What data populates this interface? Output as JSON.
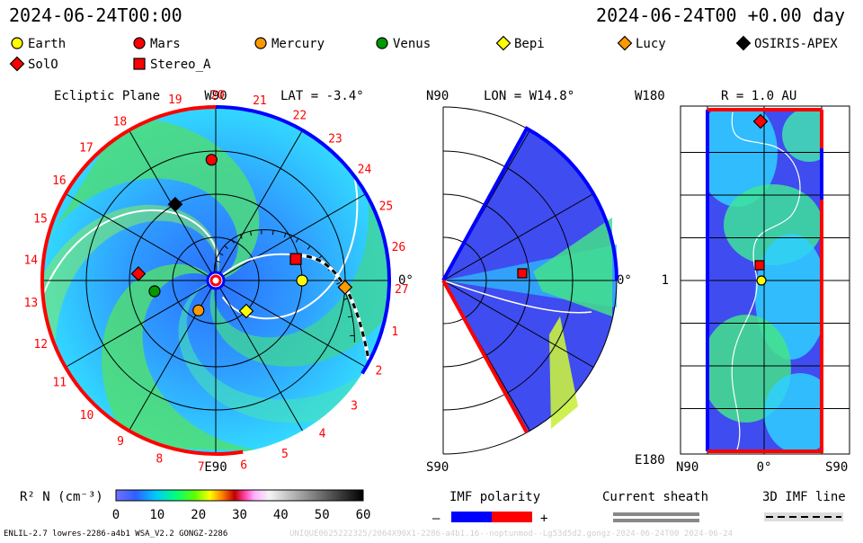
{
  "header": {
    "datetime_left": "2024-06-24T00:00",
    "datetime_right": "2024-06-24T00 +0.00 day"
  },
  "legend": {
    "bodies": [
      {
        "name": "Earth",
        "shape": "circle",
        "color": "#ffff00"
      },
      {
        "name": "Mars",
        "shape": "circle",
        "color": "#ff0000"
      },
      {
        "name": "Mercury",
        "shape": "circle",
        "color": "#ff9900"
      },
      {
        "name": "Venus",
        "shape": "circle",
        "color": "#009900"
      },
      {
        "name": "Bepi",
        "shape": "diamond",
        "color": "#ffff00"
      },
      {
        "name": "Lucy",
        "shape": "diamond",
        "color": "#ff9900"
      },
      {
        "name": "OSIRIS-APEX",
        "shape": "diamond",
        "color": "#000000"
      },
      {
        "name": "SolO",
        "shape": "diamond",
        "color": "#ff0000"
      },
      {
        "name": "Stereo_A",
        "shape": "square",
        "color": "#ff0000"
      }
    ]
  },
  "panels": {
    "ecliptic": {
      "title": "Ecliptic Plane",
      "top_label": "W90",
      "bottom_label": "E90",
      "right_label": "0°",
      "lat_label": "LAT = -3.4°",
      "rotation_numbers": [
        "19",
        "20",
        "21",
        "22",
        "23",
        "24",
        "25",
        "26",
        "27",
        "1",
        "2",
        "3",
        "4",
        "5",
        "6",
        "7",
        "8",
        "9",
        "10",
        "11",
        "12",
        "13",
        "14",
        "15",
        "16",
        "17",
        "18"
      ]
    },
    "meridional": {
      "top_left_label": "N90",
      "lon_label": "LON = W14.8°",
      "bottom_left_label": "S90",
      "right_label": "0°"
    },
    "radial": {
      "top_left_label": "W180",
      "r_label": "R = 1.0 AU",
      "mid_left_label": "1",
      "bottom_left_label": "E180",
      "x_labels": [
        "N90",
        "0°",
        "S90"
      ]
    }
  },
  "colorbar": {
    "label": "R² N (cm⁻³)",
    "ticks": [
      "0",
      "10",
      "20",
      "30",
      "40",
      "50",
      "60"
    ]
  },
  "imf_legend": {
    "polarity_title": "IMF polarity",
    "minus": "–",
    "plus": "+",
    "sheath_title": "Current sheath",
    "line_title": "3D IMF line",
    "colors": {
      "negative": "#0000ff",
      "positive": "#ff0000"
    }
  },
  "footer": {
    "left_text": "ENLIL-2.7 lowres-2286-a4b1 WSA_V2.2 GONGZ-2286",
    "right_text": "UNIQUE0625222325/2064X90X1-2286-a4b1.16--noptunmod--Lg53d5d2.gongz-2024-06-24T00    2024-06-24"
  },
  "chart_data": {
    "type": "heatmap",
    "title": "Ecliptic Plane",
    "colorbar_range": [
      0,
      60
    ],
    "colorbar_ticks": [
      0,
      10,
      20,
      30,
      40,
      50,
      60
    ],
    "bodies_ecliptic": [
      {
        "name": "Earth",
        "r_au": 1.0,
        "lon_deg": 0
      },
      {
        "name": "Mars",
        "r_au": 1.4,
        "lon_deg": 92
      },
      {
        "name": "Mercury",
        "r_au": 0.4,
        "lon_deg": -120
      },
      {
        "name": "Venus",
        "r_au": 0.72,
        "lon_deg": -170
      },
      {
        "name": "Bepi",
        "r_au": 0.5,
        "lon_deg": -45
      },
      {
        "name": "Lucy",
        "r_au": 1.5,
        "lon_deg": -3
      },
      {
        "name": "OSIRIS-APEX",
        "r_au": 1.0,
        "lon_deg": 118
      },
      {
        "name": "SolO",
        "r_au": 0.9,
        "lon_deg": 175
      },
      {
        "name": "Stereo_A",
        "r_au": 0.96,
        "lon_deg": 15
      }
    ]
  }
}
